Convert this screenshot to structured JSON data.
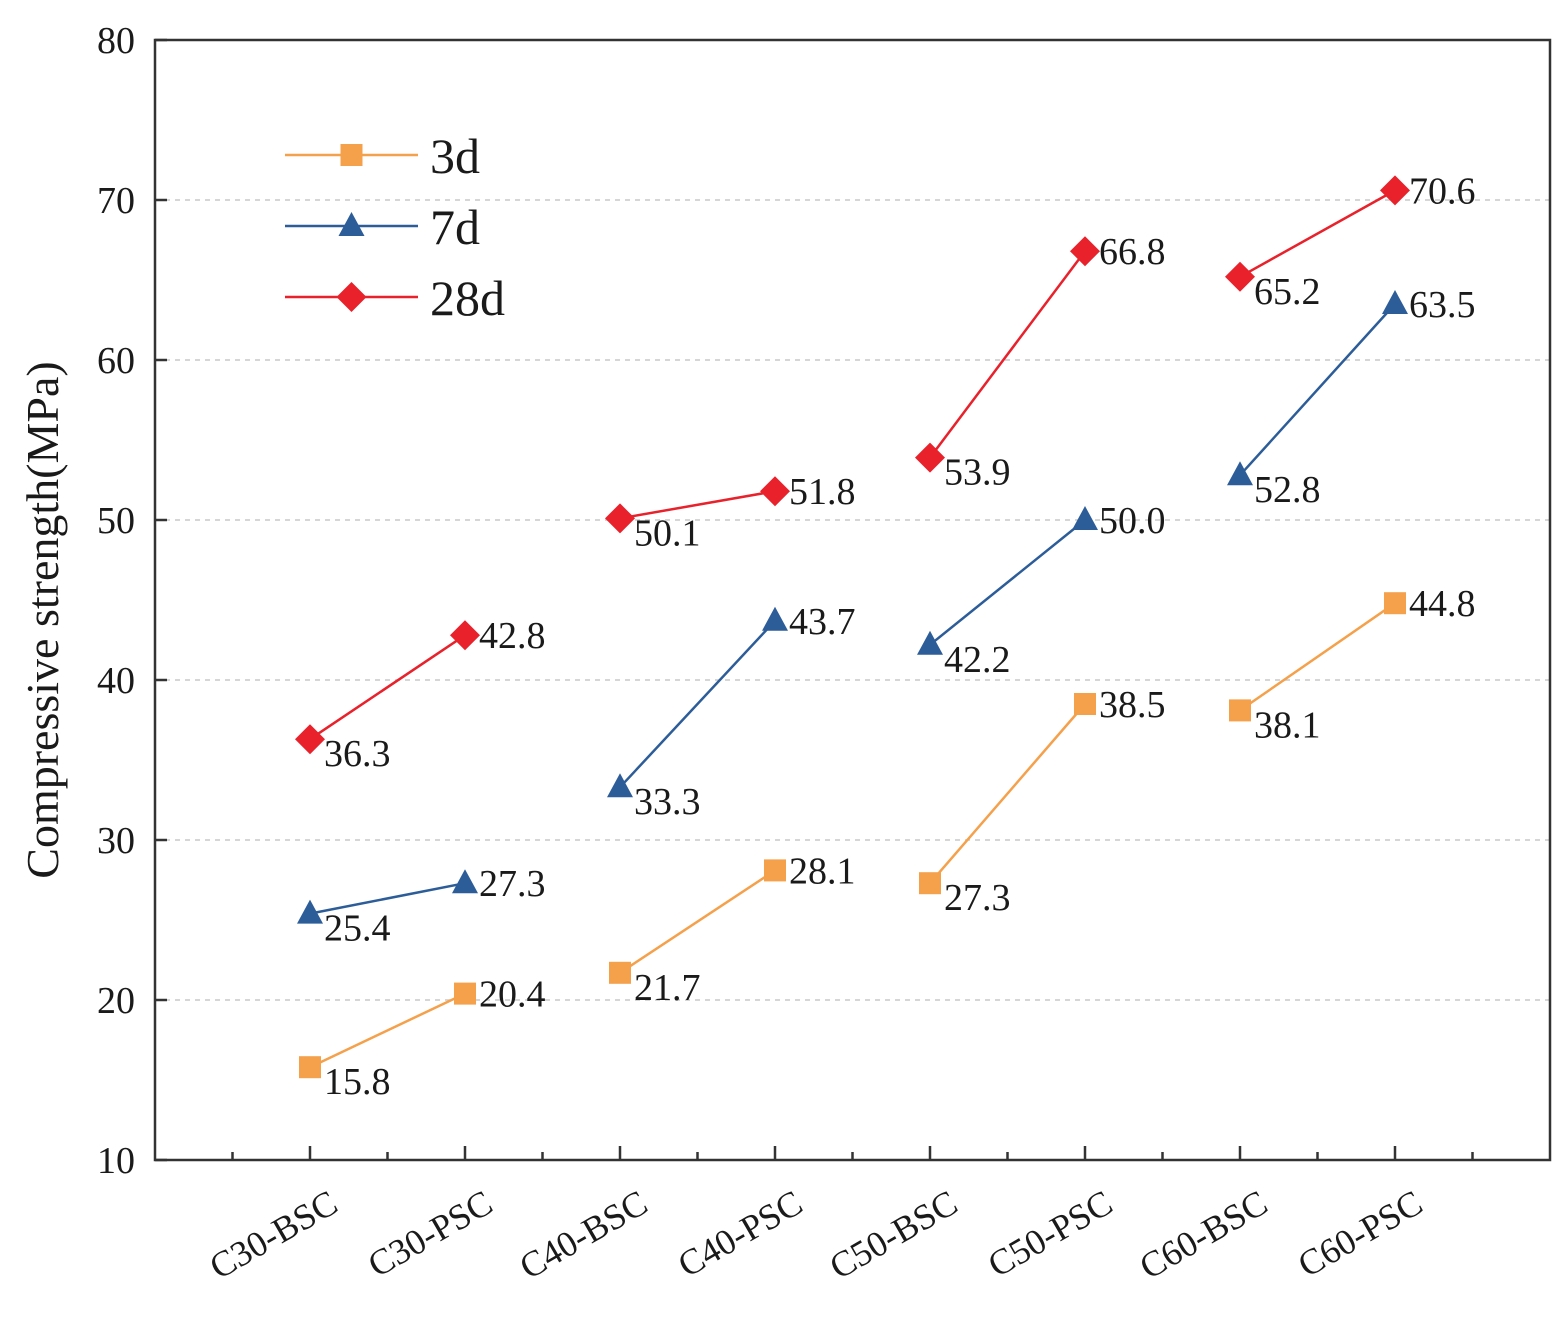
{
  "chart_data": {
    "type": "line",
    "title": "",
    "xlabel": "",
    "ylabel": "Compressive strength(MPa)",
    "ylim": [
      10,
      80
    ],
    "yticks": [
      10,
      20,
      30,
      40,
      50,
      60,
      70,
      80
    ],
    "grid": "horizontal-dashed",
    "legend_position": "top-left",
    "categories": [
      "C30-BSC",
      "C30-PSC",
      "C40-BSC",
      "C40-PSC",
      "C50-BSC",
      "C50-PSC",
      "C60-BSC",
      "C60-PSC"
    ],
    "series": [
      {
        "name": "3d",
        "marker": "square",
        "color": "#f5a04a",
        "values": [
          15.8,
          20.4,
          21.7,
          28.1,
          27.3,
          38.5,
          38.1,
          44.8
        ],
        "labels": [
          "15.8",
          "20.4",
          "21.7",
          "28.1",
          "27.3",
          "38.5",
          "38.1",
          "44.8"
        ]
      },
      {
        "name": "7d",
        "marker": "triangle",
        "color": "#2c5d99",
        "values": [
          25.4,
          27.3,
          33.3,
          43.7,
          42.2,
          50.0,
          52.8,
          63.5
        ],
        "labels": [
          "25.4",
          "27.3",
          "33.3",
          "43.7",
          "42.2",
          "50.0",
          "52.8",
          "63.5"
        ]
      },
      {
        "name": "28d",
        "marker": "diamond",
        "color": "#e8212b",
        "values": [
          36.3,
          42.8,
          50.1,
          51.8,
          53.9,
          66.8,
          65.2,
          70.6
        ],
        "labels": [
          "36.3",
          "42.8",
          "50.1",
          "51.8",
          "53.9",
          "66.8",
          "65.2",
          "70.6"
        ]
      }
    ]
  }
}
